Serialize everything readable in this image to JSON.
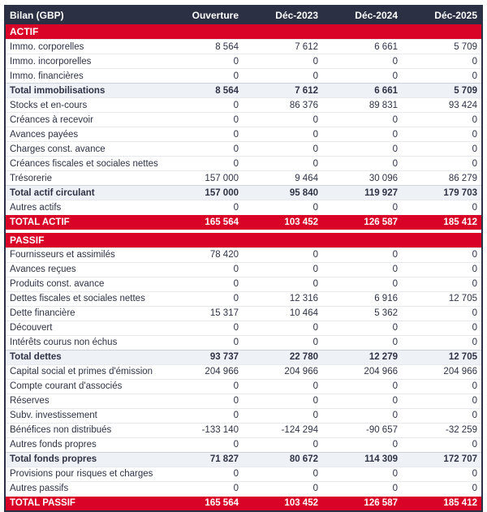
{
  "colors": {
    "header_bg": "#2c3045",
    "accent_red": "#d80326",
    "subtotal_bg": "#eef1f5",
    "text": "#2e3347"
  },
  "table": {
    "title": "Bilan (GBP)",
    "columns": [
      "Ouverture",
      "Déc-2023",
      "Déc-2024",
      "Déc-2025"
    ],
    "sections": [
      {
        "header": "ACTIF",
        "rows": [
          {
            "label": "Immo. corporelles",
            "type": "normal",
            "values": [
              "8 564",
              "7 612",
              "6 661",
              "5 709"
            ]
          },
          {
            "label": "Immo. incorporelles",
            "type": "normal",
            "values": [
              "0",
              "0",
              "0",
              "0"
            ]
          },
          {
            "label": "Immo. financières",
            "type": "normal",
            "values": [
              "0",
              "0",
              "0",
              "0"
            ]
          },
          {
            "label": "Total immobilisations",
            "type": "subtotal",
            "values": [
              "8 564",
              "7 612",
              "6 661",
              "5 709"
            ]
          },
          {
            "label": "Stocks et en-cours",
            "type": "normal",
            "values": [
              "0",
              "86 376",
              "89 831",
              "93 424"
            ]
          },
          {
            "label": "Créances à recevoir",
            "type": "normal",
            "values": [
              "0",
              "0",
              "0",
              "0"
            ]
          },
          {
            "label": "Avances payées",
            "type": "normal",
            "values": [
              "0",
              "0",
              "0",
              "0"
            ]
          },
          {
            "label": "Charges const. avance",
            "type": "normal",
            "values": [
              "0",
              "0",
              "0",
              "0"
            ]
          },
          {
            "label": "Créances fiscales et sociales nettes",
            "type": "normal",
            "values": [
              "0",
              "0",
              "0",
              "0"
            ]
          },
          {
            "label": "Trésorerie",
            "type": "normal",
            "values": [
              "157 000",
              "9 464",
              "30 096",
              "86 279"
            ]
          },
          {
            "label": "Total actif circulant",
            "type": "subtotal",
            "values": [
              "157 000",
              "95 840",
              "119 927",
              "179 703"
            ]
          },
          {
            "label": "Autres actifs",
            "type": "normal",
            "values": [
              "0",
              "0",
              "0",
              "0"
            ]
          },
          {
            "label": "TOTAL ACTIF",
            "type": "total",
            "values": [
              "165 564",
              "103 452",
              "126 587",
              "185 412"
            ]
          }
        ]
      },
      {
        "header": "PASSIF",
        "rows": [
          {
            "label": "Fournisseurs et assimilés",
            "type": "normal",
            "values": [
              "78 420",
              "0",
              "0",
              "0"
            ]
          },
          {
            "label": "Avances reçues",
            "type": "normal",
            "values": [
              "0",
              "0",
              "0",
              "0"
            ]
          },
          {
            "label": "Produits const. avance",
            "type": "normal",
            "values": [
              "0",
              "0",
              "0",
              "0"
            ]
          },
          {
            "label": "Dettes fiscales et sociales nettes",
            "type": "normal",
            "values": [
              "0",
              "12 316",
              "6 916",
              "12 705"
            ]
          },
          {
            "label": "Dette financière",
            "type": "normal",
            "values": [
              "15 317",
              "10 464",
              "5 362",
              "0"
            ]
          },
          {
            "label": "Découvert",
            "type": "normal",
            "values": [
              "0",
              "0",
              "0",
              "0"
            ]
          },
          {
            "label": "Intérêts courus non échus",
            "type": "normal",
            "values": [
              "0",
              "0",
              "0",
              "0"
            ]
          },
          {
            "label": "Total dettes",
            "type": "subtotal",
            "values": [
              "93 737",
              "22 780",
              "12 279",
              "12 705"
            ]
          },
          {
            "label": "Capital social et primes d'émission",
            "type": "normal",
            "values": [
              "204 966",
              "204 966",
              "204 966",
              "204 966"
            ]
          },
          {
            "label": "Compte courant d'associés",
            "type": "normal",
            "values": [
              "0",
              "0",
              "0",
              "0"
            ]
          },
          {
            "label": "Réserves",
            "type": "normal",
            "values": [
              "0",
              "0",
              "0",
              "0"
            ]
          },
          {
            "label": "Subv. investissement",
            "type": "normal",
            "values": [
              "0",
              "0",
              "0",
              "0"
            ]
          },
          {
            "label": "Bénéfices non distribués",
            "type": "normal",
            "values": [
              "-133 140",
              "-124 294",
              "-90 657",
              "-32 259"
            ]
          },
          {
            "label": "Autres fonds propres",
            "type": "normal",
            "values": [
              "0",
              "0",
              "0",
              "0"
            ]
          },
          {
            "label": "Total fonds propres",
            "type": "subtotal",
            "values": [
              "71 827",
              "80 672",
              "114 309",
              "172 707"
            ]
          },
          {
            "label": "Provisions pour risques et charges",
            "type": "normal",
            "values": [
              "0",
              "0",
              "0",
              "0"
            ]
          },
          {
            "label": "Autres passifs",
            "type": "normal",
            "values": [
              "0",
              "0",
              "0",
              "0"
            ]
          },
          {
            "label": "TOTAL PASSIF",
            "type": "total",
            "values": [
              "165 564",
              "103 452",
              "126 587",
              "185 412"
            ]
          }
        ]
      }
    ]
  }
}
